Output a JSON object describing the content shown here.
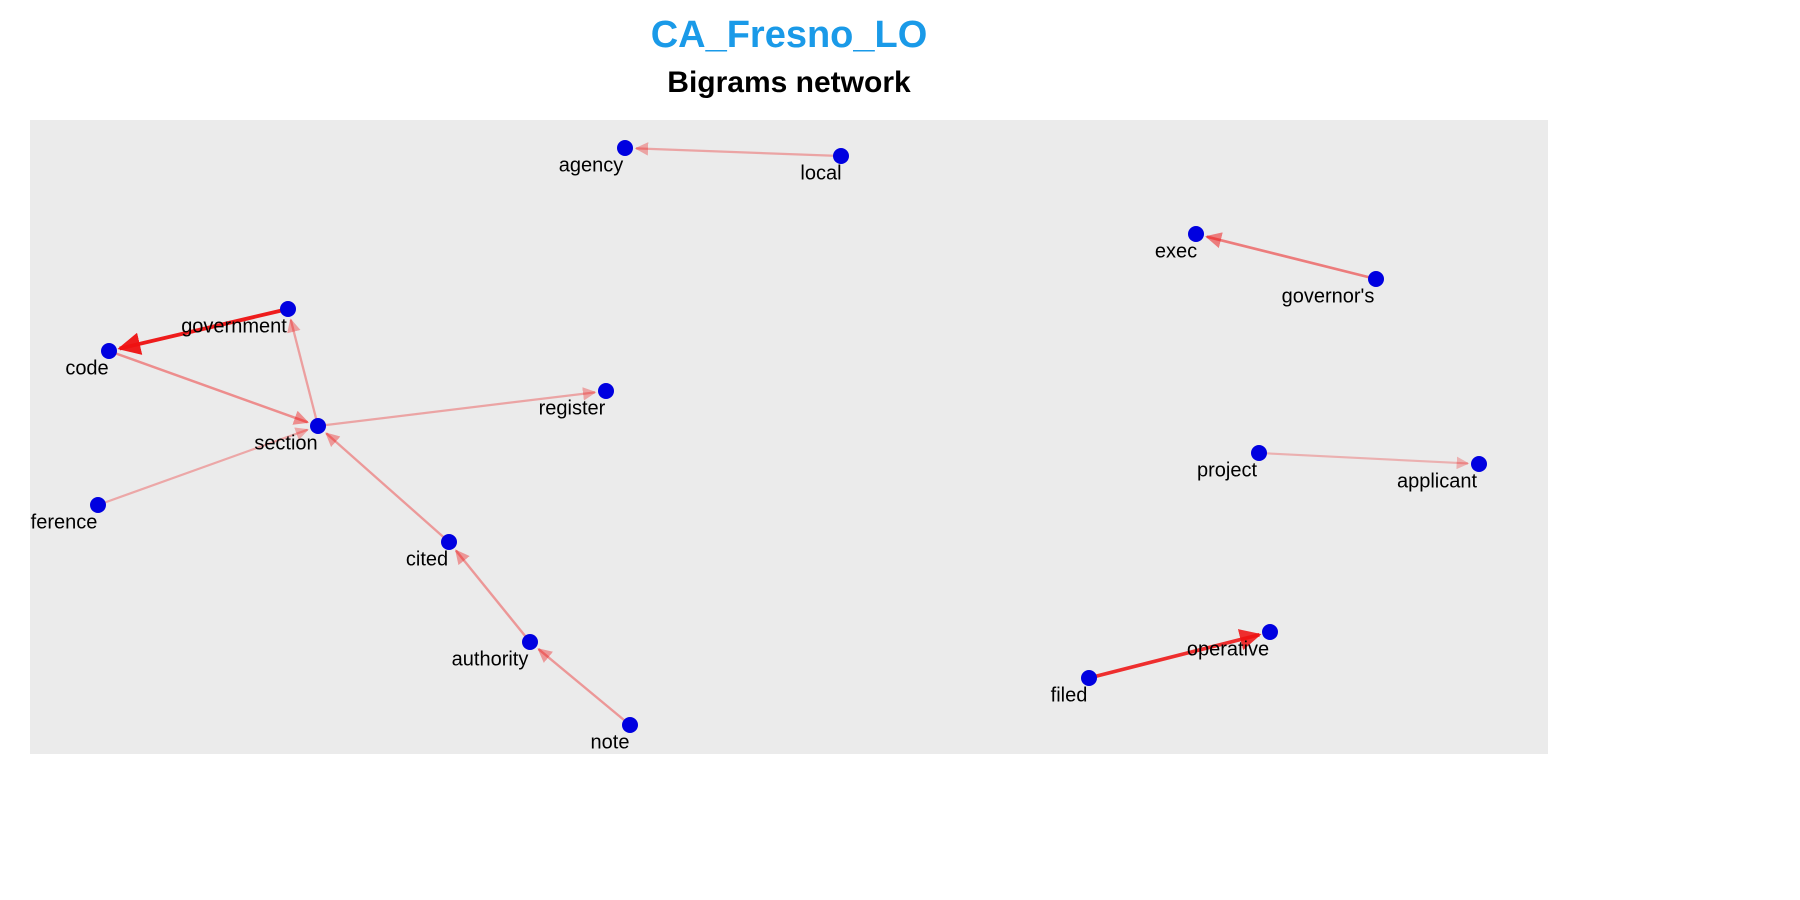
{
  "header": {
    "title": "CA_Fresno_LO",
    "subtitle": "Bigrams network"
  },
  "colors": {
    "title": "#1a9ae8",
    "node": "#0000e0",
    "edge": "#ee1111",
    "panel": "#ebebeb"
  },
  "nodes": [
    {
      "id": "agency",
      "label": "agency"
    },
    {
      "id": "local",
      "label": "local"
    },
    {
      "id": "exec",
      "label": "exec"
    },
    {
      "id": "governors",
      "label": "governor's"
    },
    {
      "id": "government",
      "label": "government"
    },
    {
      "id": "code",
      "label": "code"
    },
    {
      "id": "register",
      "label": "register"
    },
    {
      "id": "section",
      "label": "section"
    },
    {
      "id": "reference",
      "label": "ference"
    },
    {
      "id": "project",
      "label": "project"
    },
    {
      "id": "applicant",
      "label": "applicant"
    },
    {
      "id": "cited",
      "label": "cited"
    },
    {
      "id": "authority",
      "label": "authority"
    },
    {
      "id": "note",
      "label": "note"
    },
    {
      "id": "operative",
      "label": "operative"
    },
    {
      "id": "filed",
      "label": "filed"
    }
  ],
  "edges": [
    {
      "from": "local",
      "to": "agency",
      "weight": 0.22
    },
    {
      "from": "governors",
      "to": "exec",
      "weight": 0.45
    },
    {
      "from": "government",
      "to": "code",
      "weight": 1.0
    },
    {
      "from": "code",
      "to": "section",
      "weight": 0.35
    },
    {
      "from": "section",
      "to": "government",
      "weight": 0.25
    },
    {
      "from": "section",
      "to": "register",
      "weight": 0.22
    },
    {
      "from": "reference",
      "to": "section",
      "weight": 0.2
    },
    {
      "from": "cited",
      "to": "section",
      "weight": 0.28
    },
    {
      "from": "authority",
      "to": "cited",
      "weight": 0.3
    },
    {
      "from": "note",
      "to": "authority",
      "weight": 0.3
    },
    {
      "from": "project",
      "to": "applicant",
      "weight": 0.15
    },
    {
      "from": "filed",
      "to": "operative",
      "weight": 0.9
    }
  ]
}
